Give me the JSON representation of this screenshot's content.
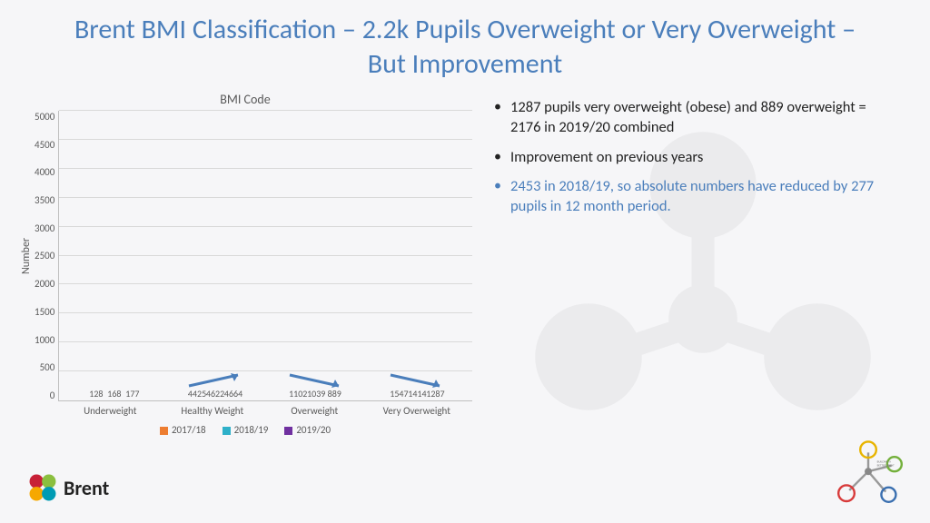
{
  "title": "Brent BMI Classification – 2.2k Pupils Overweight or Very Overweight – But Improvement",
  "chart": {
    "title": "BMI Code",
    "ylabel": "Number",
    "ymax": 5000,
    "ytick_step": 500,
    "grid_color": "#d9d9d9",
    "axis_color": "#bfbfbf",
    "tick_color": "#595959",
    "categories": [
      "Underweight",
      "Healthy Weight",
      "Overweight",
      "Very Overweight"
    ],
    "series": [
      {
        "name": "2017/18",
        "color": "#ed7d31",
        "values": [
          128,
          4425,
          1102,
          1547
        ]
      },
      {
        "name": "2018/19",
        "color": "#2eb0c9",
        "values": [
          168,
          4622,
          1039,
          1414
        ]
      },
      {
        "name": "2019/20",
        "color": "#7030a0",
        "values": [
          177,
          4664,
          889,
          1287
        ]
      }
    ],
    "arrows": [
      {
        "group": 1,
        "dir": "up",
        "color": "#4a7ebb"
      },
      {
        "group": 2,
        "dir": "down",
        "color": "#4a7ebb"
      },
      {
        "group": 3,
        "dir": "down",
        "color": "#4a7ebb"
      }
    ]
  },
  "bullets": [
    {
      "text": "1287 pupils very overweight (obese) and 889 overweight = 2176 in 2019/20 combined",
      "hl": false
    },
    {
      "text": "Improvement on previous years",
      "hl": false
    },
    {
      "text": "2453 in 2018/19, so absolute numbers have reduced by 277 pupils in 12 month period.",
      "hl": true
    }
  ],
  "brent_label": "Brent",
  "brent_logo_colors": {
    "tl": "#c72037",
    "tr": "#8bbf3f",
    "bl": "#f6a800",
    "br": "#009bb4"
  },
  "corner_logo_colors": [
    "#e8b400",
    "#74b03c",
    "#d83a3a",
    "#3a6fb0"
  ]
}
